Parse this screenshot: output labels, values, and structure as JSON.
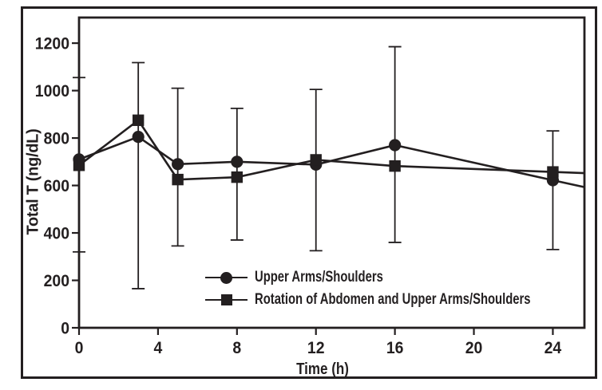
{
  "figure": {
    "background": "#ffffff",
    "ink_color": "#231f20"
  },
  "chart_data": {
    "type": "line",
    "title": "",
    "xlabel": "Time (h)",
    "ylabel": "Total T (ng/dL)",
    "x_ticks": [
      0,
      4,
      8,
      12,
      16,
      20,
      24
    ],
    "y_ticks": [
      0,
      200,
      400,
      600,
      800,
      1000,
      1200
    ],
    "xlim": [
      0,
      25.6
    ],
    "ylim": [
      0,
      1308
    ],
    "grid": false,
    "legend_position": "inside-lower-center",
    "x": [
      0,
      3,
      5,
      8,
      12,
      16,
      24
    ],
    "series": [
      {
        "name": "Upper Arms/Shoulders",
        "marker": "circle",
        "values": [
          710,
          805,
          690,
          700,
          688,
          770,
          622
        ],
        "line_extension": {
          "x": 25.6,
          "value": 593
        }
      },
      {
        "name": "Rotation of Abdomen and Upper Arms/Shoulders",
        "marker": "square",
        "values": [
          685,
          875,
          625,
          635,
          708,
          682,
          657
        ],
        "line_extension": {
          "x": 25.6,
          "value": 652
        }
      }
    ],
    "error_bars": [
      {
        "x": 0,
        "low": 320,
        "high": 1055
      },
      {
        "x": 3,
        "low": 165,
        "high": 1118
      },
      {
        "x": 5,
        "low": 345,
        "high": 1010
      },
      {
        "x": 8,
        "low": 370,
        "high": 925
      },
      {
        "x": 12,
        "low": 325,
        "high": 1005
      },
      {
        "x": 16,
        "low": 360,
        "high": 1185
      },
      {
        "x": 24,
        "low": 330,
        "high": 830
      }
    ]
  }
}
